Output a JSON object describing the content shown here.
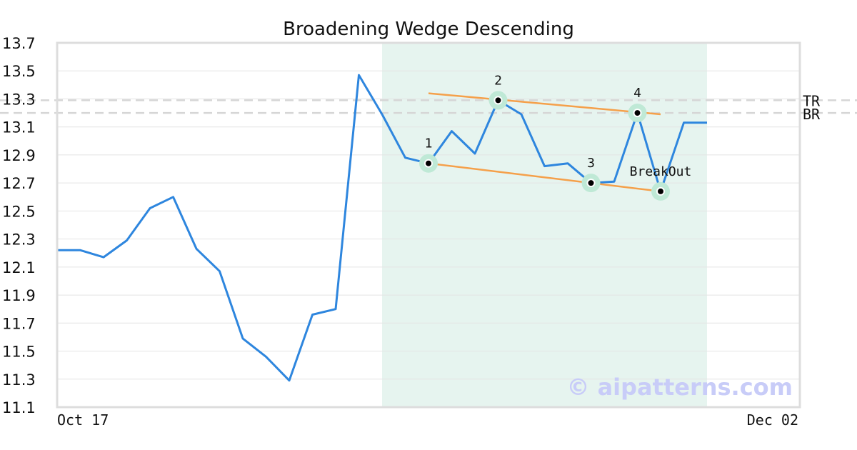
{
  "chart_data": {
    "type": "line",
    "title": "Broadening Wedge Descending",
    "xlabel": "",
    "ylabel": "",
    "ylim": [
      11.1,
      13.7
    ],
    "yticks": [
      "11.1",
      "11.3",
      "11.5",
      "11.7",
      "11.9",
      "12.1",
      "12.3",
      "12.5",
      "12.7",
      "12.9",
      "13.1",
      "13.3",
      "13.5",
      "13.7"
    ],
    "xtick_labels": [
      {
        "index": 0,
        "label": "Oct 17"
      },
      {
        "index": 32,
        "label": "Dec 02"
      }
    ],
    "grid": true,
    "series": [
      {
        "color": "#2e86de",
        "x": [
          0,
          1,
          2,
          3,
          4,
          5,
          6,
          7,
          8,
          9,
          10,
          11,
          12,
          13,
          14,
          15,
          16,
          17,
          18,
          19,
          20,
          21,
          22,
          23,
          24,
          25,
          26,
          27,
          28
        ],
        "values": [
          12.22,
          12.22,
          12.17,
          12.29,
          12.52,
          12.6,
          12.23,
          12.07,
          11.59,
          11.46,
          11.29,
          11.76,
          11.8,
          13.47,
          13.19,
          12.88,
          12.84,
          13.07,
          12.91,
          13.29,
          13.19,
          12.82,
          12.84,
          12.7,
          12.71,
          13.2,
          12.64,
          13.13,
          13.13
        ]
      }
    ],
    "pattern_region": {
      "x_start": 14,
      "x_end": 28,
      "color": "#e6f4ef"
    },
    "reference_lines": [
      {
        "label": "TR",
        "y": 13.29,
        "color": "#d6d6d6"
      },
      {
        "label": "BR",
        "y": 13.2,
        "color": "#d6d6d6"
      }
    ],
    "trend_lines": [
      {
        "name": "upper",
        "color": "#f5a04a",
        "x1": 16,
        "y1": 13.34,
        "x2": 26,
        "y2": 13.19
      },
      {
        "name": "lower",
        "color": "#f5a04a",
        "x1": 16,
        "y1": 12.84,
        "x2": 26,
        "y2": 12.64
      }
    ],
    "pattern_points": [
      {
        "label": "1",
        "x": 16,
        "y": 12.84,
        "label_pos": "above"
      },
      {
        "label": "2",
        "x": 19,
        "y": 13.29,
        "label_pos": "above"
      },
      {
        "label": "3",
        "x": 23,
        "y": 12.7,
        "label_pos": "above"
      },
      {
        "label": "4",
        "x": 25,
        "y": 13.2,
        "label_pos": "above"
      },
      {
        "label": "BreakOut",
        "x": 26,
        "y": 12.64,
        "label_pos": "above"
      }
    ]
  },
  "watermark": "© aipatterns.com"
}
